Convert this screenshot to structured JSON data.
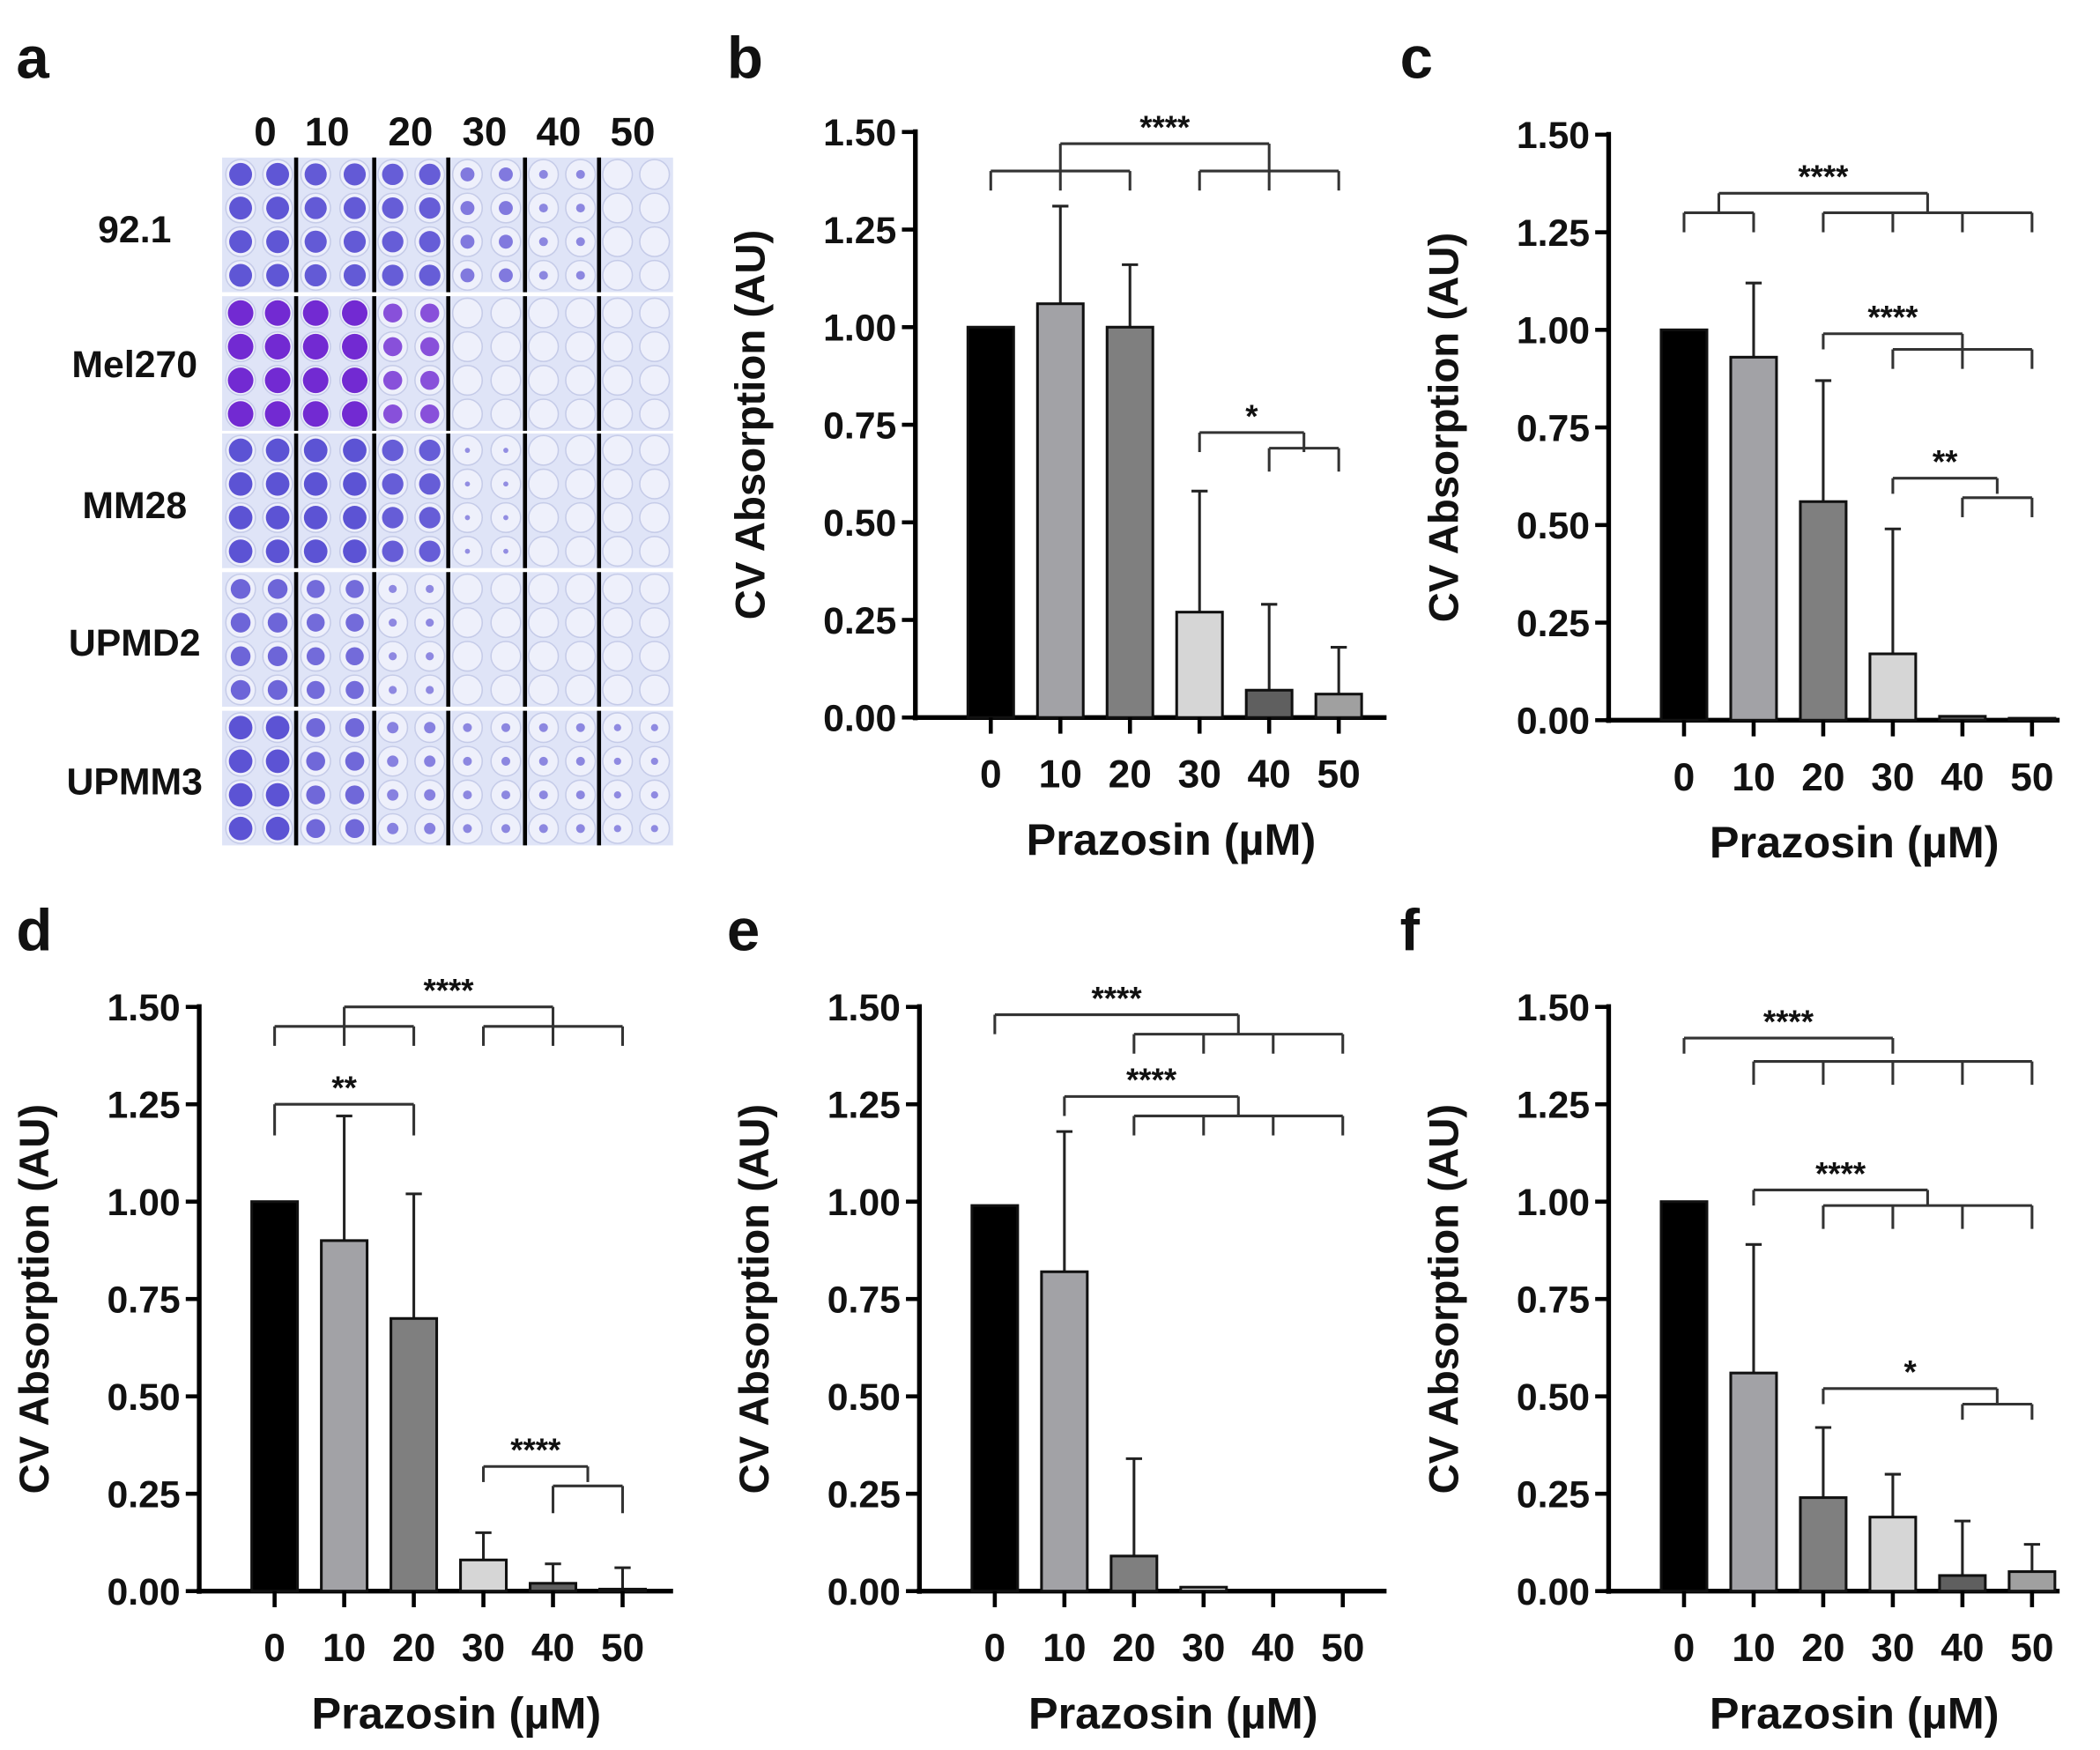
{
  "panel_a": {
    "letter": "a",
    "column_labels": [
      "0",
      "10",
      "20",
      "30",
      "40",
      "50"
    ],
    "row_labels": [
      "92.1",
      "Mel270",
      "MM28",
      "UPMD2",
      "UPMM3"
    ],
    "stain_density": [
      [
        0.8,
        0.75,
        0.7,
        0.3,
        0.12,
        0.0
      ],
      [
        1.0,
        1.0,
        0.55,
        0.0,
        0.0,
        0.0
      ],
      [
        0.85,
        0.85,
        0.7,
        0.04,
        0.0,
        0.0
      ],
      [
        0.6,
        0.5,
        0.1,
        0.0,
        0.0,
        0.0
      ],
      [
        0.85,
        0.55,
        0.2,
        0.12,
        0.12,
        0.08
      ]
    ],
    "stain_colors": {
      "blue": "#4a3fcf",
      "purple": "#6a1fd0",
      "background": "#dfe4f7"
    }
  },
  "chart_data": [
    {
      "type": "bar",
      "letter": "b",
      "categories": [
        "0",
        "10",
        "20",
        "30",
        "40",
        "50"
      ],
      "values": [
        1.0,
        1.06,
        1.0,
        0.27,
        0.07,
        0.06
      ],
      "error_upper": [
        1.0,
        1.31,
        1.16,
        0.58,
        0.29,
        0.18
      ],
      "xlabel": "Prazosin (µM)",
      "ylabel": "CV Absorption (AU)",
      "ylim": [
        0,
        1.5
      ],
      "yticks": [
        "0.00",
        "0.25",
        "0.50",
        "0.75",
        "1.00",
        "1.25",
        "1.50"
      ],
      "brackets": [
        {
          "from": 0,
          "to": 2,
          "y": 1.4,
          "ticks": [
            0,
            1,
            2
          ],
          "drop": 0.05,
          "label": ""
        },
        {
          "from": 3,
          "to": 5,
          "y": 1.4,
          "ticks": [
            3,
            4,
            5
          ],
          "drop": 0.05,
          "label": ""
        },
        {
          "from": 1,
          "to": 4,
          "y": 1.47,
          "ticks": [
            1,
            4
          ],
          "drop": 0.07,
          "label": "****"
        },
        {
          "from": 3,
          "to": 4.5,
          "y": 0.73,
          "ticks": [
            3,
            4.5
          ],
          "drop": 0.05,
          "label": "*"
        },
        {
          "from": 4,
          "to": 5,
          "y": 0.69,
          "ticks": [
            4,
            5
          ],
          "drop": 0.06,
          "label": ""
        }
      ]
    },
    {
      "type": "bar",
      "letter": "c",
      "categories": [
        "0",
        "10",
        "20",
        "30",
        "40",
        "50"
      ],
      "values": [
        1.0,
        0.93,
        0.56,
        0.17,
        0.01,
        0.005
      ],
      "error_upper": [
        1.0,
        1.12,
        0.87,
        0.49,
        0.01,
        0.005
      ],
      "xlabel": "Prazosin (µM)",
      "ylabel": "CV Absorption (AU)",
      "ylim": [
        0,
        1.5
      ],
      "yticks": [
        "0.00",
        "0.25",
        "0.50",
        "0.75",
        "1.00",
        "1.25",
        "1.50"
      ],
      "brackets": [
        {
          "from": 0,
          "to": 1,
          "y": 1.3,
          "ticks": [
            0,
            1
          ],
          "drop": 0.05,
          "label": ""
        },
        {
          "from": 2,
          "to": 5,
          "y": 1.3,
          "ticks": [
            2,
            3,
            4,
            5
          ],
          "drop": 0.05,
          "label": ""
        },
        {
          "from": 0.5,
          "to": 3.5,
          "y": 1.35,
          "ticks": [
            0.5,
            3.5
          ],
          "drop": 0.05,
          "label": "****"
        },
        {
          "from": 2,
          "to": 4,
          "y": 0.99,
          "ticks": [
            2,
            4
          ],
          "drop": 0.04,
          "label": "****"
        },
        {
          "from": 3,
          "to": 5,
          "y": 0.95,
          "ticks": [
            3,
            4,
            5
          ],
          "drop": 0.05,
          "label": ""
        },
        {
          "from": 3,
          "to": 4.5,
          "y": 0.62,
          "ticks": [
            3,
            4.5
          ],
          "drop": 0.04,
          "label": "**"
        },
        {
          "from": 4,
          "to": 5,
          "y": 0.57,
          "ticks": [
            4,
            5
          ],
          "drop": 0.05,
          "label": ""
        }
      ]
    },
    {
      "type": "bar",
      "letter": "d",
      "categories": [
        "0",
        "10",
        "20",
        "30",
        "40",
        "50"
      ],
      "values": [
        1.0,
        0.9,
        0.7,
        0.08,
        0.02,
        0.005
      ],
      "error_upper": [
        1.0,
        1.22,
        1.02,
        0.15,
        0.07,
        0.06
      ],
      "xlabel": "Prazosin (µM)",
      "ylabel": "CV Absorption (AU)",
      "ylim": [
        0,
        1.5
      ],
      "yticks": [
        "0.00",
        "0.25",
        "0.50",
        "0.75",
        "1.00",
        "1.25",
        "1.50"
      ],
      "brackets": [
        {
          "from": 0,
          "to": 2,
          "y": 1.45,
          "ticks": [
            0,
            1,
            2
          ],
          "drop": 0.05,
          "label": ""
        },
        {
          "from": 3,
          "to": 5,
          "y": 1.45,
          "ticks": [
            3,
            4,
            5
          ],
          "drop": 0.05,
          "label": ""
        },
        {
          "from": 1,
          "to": 4,
          "y": 1.5,
          "ticks": [
            1,
            4
          ],
          "drop": 0.05,
          "label": "****"
        },
        {
          "from": 0,
          "to": 2,
          "y": 1.25,
          "ticks": [
            0,
            2
          ],
          "drop": 0.08,
          "label": "**"
        },
        {
          "from": 3,
          "to": 4.5,
          "y": 0.32,
          "ticks": [
            3,
            4.5
          ],
          "drop": 0.04,
          "label": "****"
        },
        {
          "from": 4,
          "to": 5,
          "y": 0.27,
          "ticks": [
            4,
            5
          ],
          "drop": 0.07,
          "label": ""
        }
      ]
    },
    {
      "type": "bar",
      "letter": "e",
      "categories": [
        "0",
        "10",
        "20",
        "30",
        "40",
        "50"
      ],
      "values": [
        0.99,
        0.82,
        0.09,
        0.01,
        0.0,
        0.0
      ],
      "error_upper": [
        0.99,
        1.18,
        0.34,
        0.01,
        0.0,
        0.0
      ],
      "xlabel": "Prazosin (µM)",
      "ylabel": "CV Absorption (AU)",
      "ylim": [
        0,
        1.5
      ],
      "yticks": [
        "0.00",
        "0.25",
        "0.50",
        "0.75",
        "1.00",
        "1.25",
        "1.50"
      ],
      "brackets": [
        {
          "from": 0,
          "to": 3.5,
          "y": 1.48,
          "ticks": [
            0,
            3.5
          ],
          "drop": 0.05,
          "label": "****"
        },
        {
          "from": 2,
          "to": 5,
          "y": 1.43,
          "ticks": [
            2,
            3,
            4,
            5
          ],
          "drop": 0.05,
          "label": ""
        },
        {
          "from": 1,
          "to": 3.5,
          "y": 1.27,
          "ticks": [
            1,
            3.5
          ],
          "drop": 0.05,
          "label": "****"
        },
        {
          "from": 2,
          "to": 5,
          "y": 1.22,
          "ticks": [
            2,
            3,
            4,
            5
          ],
          "drop": 0.05,
          "label": ""
        }
      ]
    },
    {
      "type": "bar",
      "letter": "f",
      "categories": [
        "0",
        "10",
        "20",
        "30",
        "40",
        "50"
      ],
      "values": [
        1.0,
        0.56,
        0.24,
        0.19,
        0.04,
        0.05
      ],
      "error_upper": [
        1.0,
        0.89,
        0.42,
        0.3,
        0.18,
        0.12
      ],
      "xlabel": "Prazosin (µM)",
      "ylabel": "CV Absorption (AU)",
      "ylim": [
        0,
        1.5
      ],
      "yticks": [
        "0.00",
        "0.25",
        "0.50",
        "0.75",
        "1.00",
        "1.25",
        "1.50"
      ],
      "brackets": [
        {
          "from": 0,
          "to": 3,
          "y": 1.42,
          "ticks": [
            0,
            3
          ],
          "drop": 0.04,
          "label": "****"
        },
        {
          "from": 1,
          "to": 5,
          "y": 1.36,
          "ticks": [
            1,
            2,
            3,
            4,
            5
          ],
          "drop": 0.06,
          "label": ""
        },
        {
          "from": 1,
          "to": 3.5,
          "y": 1.03,
          "ticks": [
            1,
            3.5
          ],
          "drop": 0.04,
          "label": "****"
        },
        {
          "from": 2,
          "to": 5,
          "y": 0.99,
          "ticks": [
            2,
            3,
            4,
            5
          ],
          "drop": 0.06,
          "label": ""
        },
        {
          "from": 2,
          "to": 4.5,
          "y": 0.52,
          "ticks": [
            2,
            4.5
          ],
          "drop": 0.04,
          "label": "*"
        },
        {
          "from": 4,
          "to": 5,
          "y": 0.48,
          "ticks": [
            4,
            5
          ],
          "drop": 0.04,
          "label": ""
        }
      ]
    }
  ],
  "bar_colors": [
    "#000000",
    "#a2a2a6",
    "#7f7f7f",
    "#d6d6d6",
    "#5f5f5f",
    "#a0a0a0"
  ]
}
